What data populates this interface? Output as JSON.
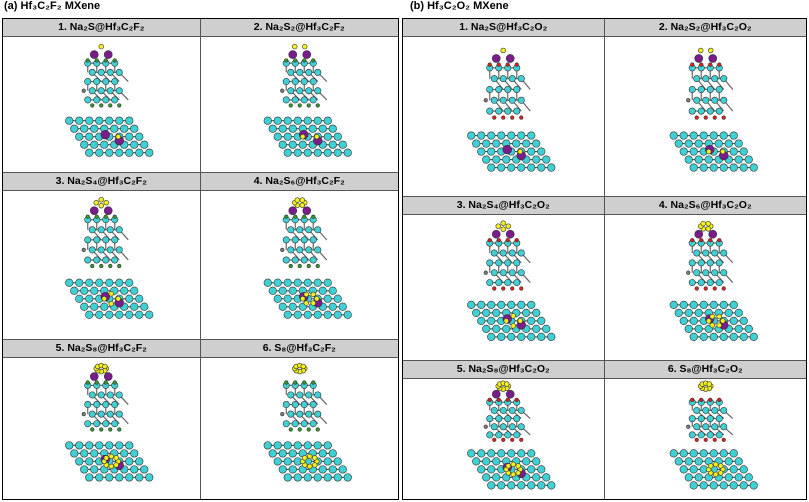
{
  "left": {
    "title": "(a) Hf₃C₂F₂ MXene",
    "panels": [
      {
        "label": "1.  Na₂S@Hf₃C₂F₂",
        "kind": "s1"
      },
      {
        "label": "2.  Na₂S₂@Hf₃C₂F₂",
        "kind": "s2"
      },
      {
        "label": "3.  Na₂S₄@Hf₃C₂F₂",
        "kind": "s4"
      },
      {
        "label": "4.  Na₂S₆@Hf₃C₂F₂",
        "kind": "s6"
      },
      {
        "label": "5.  Na₂S₈@Hf₃C₂F₂",
        "kind": "s8"
      },
      {
        "label": "6.  S₈@Hf₃C₂F₂",
        "kind": "s8only"
      }
    ]
  },
  "right": {
    "title": "(b) Hf₃C₂O₂ MXene",
    "panels": [
      {
        "label": "1.  Na₂S@Hf₃C₂O₂",
        "kind": "s1"
      },
      {
        "label": "2.  Na₂S₂@Hf₃C₂O₂",
        "kind": "s2"
      },
      {
        "label": "3.  Na₂S₄@Hf₃C₂O₂",
        "kind": "s4"
      },
      {
        "label": "4.  Na₂S₆@Hf₃C₂O₂",
        "kind": "s6"
      },
      {
        "label": "5.  Na₂S₈@Hf₃C₂O₂",
        "kind": "s8"
      },
      {
        "label": "6.  S₈@Hf₃C₂O₂",
        "kind": "s8only"
      }
    ]
  },
  "colors": {
    "hf": "#3fd0d4",
    "c": "#7a7a7a",
    "na": "#7b1c8c",
    "s": "#f4f01c",
    "f": "#2e9a2e",
    "o": "#e02020",
    "header": "#cfcfcf"
  }
}
